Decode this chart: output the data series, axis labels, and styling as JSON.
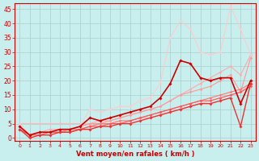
{
  "title": "",
  "xlabel": "Vent moyen/en rafales ( km/h )",
  "ylabel": "",
  "xlim": [
    -0.5,
    23.5
  ],
  "ylim": [
    -1,
    47
  ],
  "bg_color": "#c8eeee",
  "grid_color": "#aacccc",
  "xlabel_color": "#cc0000",
  "tick_color": "#cc0000",
  "series": [
    {
      "x": [
        0,
        1,
        2,
        3,
        4,
        5,
        6,
        7,
        8,
        9,
        10,
        11,
        12,
        13,
        14,
        15,
        16,
        17,
        18,
        19,
        20,
        21,
        22,
        23
      ],
      "y": [
        5,
        5,
        5,
        5,
        5,
        5,
        5,
        5,
        5,
        5,
        6,
        6,
        7,
        7,
        8,
        9,
        10,
        11,
        12,
        13,
        14,
        15,
        16,
        19
      ],
      "color": "#ffbbbb",
      "lw": 0.8,
      "marker": "D",
      "ms": 1.5
    },
    {
      "x": [
        0,
        1,
        2,
        3,
        4,
        5,
        6,
        7,
        8,
        9,
        10,
        11,
        12,
        13,
        14,
        15,
        16,
        17,
        18,
        19,
        20,
        21,
        22,
        23
      ],
      "y": [
        4,
        1,
        2,
        3,
        3,
        3,
        4,
        5,
        6,
        6,
        7,
        8,
        9,
        10,
        11,
        13,
        15,
        17,
        19,
        21,
        23,
        25,
        22,
        29
      ],
      "color": "#ffaaaa",
      "lw": 0.8,
      "marker": "D",
      "ms": 1.5
    },
    {
      "x": [
        0,
        1,
        2,
        3,
        4,
        5,
        6,
        7,
        8,
        9,
        10,
        11,
        12,
        13,
        14,
        15,
        16,
        17,
        18,
        19,
        20,
        21,
        22,
        23
      ],
      "y": [
        3,
        1,
        2,
        2,
        3,
        3,
        4,
        5,
        5,
        6,
        7,
        8,
        9,
        10,
        11,
        13,
        15,
        16,
        17,
        18,
        20,
        22,
        16,
        28
      ],
      "color": "#ff9999",
      "lw": 0.8,
      "marker": "D",
      "ms": 1.5
    },
    {
      "x": [
        0,
        1,
        2,
        3,
        4,
        5,
        6,
        7,
        8,
        9,
        10,
        11,
        12,
        13,
        14,
        15,
        16,
        17,
        18,
        19,
        20,
        21,
        22,
        23
      ],
      "y": [
        3,
        1,
        2,
        2,
        2,
        3,
        3,
        4,
        5,
        5,
        6,
        6,
        7,
        8,
        9,
        10,
        11,
        12,
        13,
        14,
        15,
        16,
        17,
        19
      ],
      "color": "#ff7777",
      "lw": 0.8,
      "marker": "D",
      "ms": 1.5
    },
    {
      "x": [
        0,
        1,
        2,
        3,
        4,
        5,
        6,
        7,
        8,
        9,
        10,
        11,
        12,
        13,
        14,
        15,
        16,
        17,
        18,
        19,
        20,
        21,
        22,
        23
      ],
      "y": [
        3,
        1,
        1,
        2,
        2,
        2,
        3,
        4,
        4,
        5,
        5,
        6,
        7,
        8,
        9,
        10,
        11,
        12,
        13,
        13,
        14,
        15,
        16,
        18
      ],
      "color": "#ff5555",
      "lw": 0.8,
      "marker": "D",
      "ms": 1.5
    },
    {
      "x": [
        0,
        1,
        2,
        3,
        4,
        5,
        6,
        7,
        8,
        9,
        10,
        11,
        12,
        13,
        14,
        15,
        16,
        17,
        18,
        19,
        20,
        21,
        22,
        23
      ],
      "y": [
        3,
        0,
        1,
        1,
        2,
        2,
        3,
        3,
        4,
        4,
        5,
        5,
        6,
        7,
        8,
        9,
        10,
        11,
        12,
        12,
        13,
        14,
        4,
        19
      ],
      "color": "#ee3333",
      "lw": 1.0,
      "marker": "D",
      "ms": 1.8
    },
    {
      "x": [
        0,
        1,
        2,
        3,
        4,
        5,
        6,
        7,
        8,
        9,
        10,
        11,
        12,
        13,
        14,
        15,
        16,
        17,
        18,
        19,
        20,
        21,
        22,
        23
      ],
      "y": [
        4,
        1,
        2,
        2,
        3,
        3,
        4,
        7,
        6,
        7,
        8,
        9,
        10,
        11,
        14,
        19,
        27,
        26,
        21,
        20,
        21,
        21,
        12,
        20
      ],
      "color": "#cc0000",
      "lw": 1.2,
      "marker": "D",
      "ms": 1.8
    },
    {
      "x": [
        0,
        1,
        2,
        3,
        4,
        5,
        6,
        7,
        8,
        9,
        10,
        11,
        12,
        13,
        14,
        15,
        16,
        17,
        18,
        19,
        20,
        21,
        22,
        23
      ],
      "y": [
        5,
        1,
        2,
        2,
        3,
        3,
        4,
        10,
        9,
        10,
        11,
        11,
        13,
        14,
        19,
        35,
        41,
        38,
        30,
        29,
        30,
        46,
        38,
        29
      ],
      "color": "#ffcccc",
      "lw": 0.8,
      "marker": "D",
      "ms": 1.5
    }
  ],
  "xticks": [
    0,
    1,
    2,
    3,
    4,
    5,
    6,
    7,
    8,
    9,
    10,
    11,
    12,
    13,
    14,
    15,
    16,
    17,
    18,
    19,
    20,
    21,
    22,
    23
  ],
  "yticks": [
    0,
    5,
    10,
    15,
    20,
    25,
    30,
    35,
    40,
    45
  ]
}
